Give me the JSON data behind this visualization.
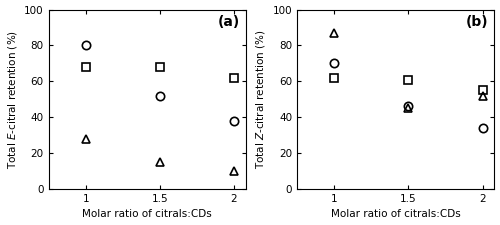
{
  "x": [
    1,
    1.5,
    2
  ],
  "panel_a": {
    "label": "(a)",
    "ylabel": "Total $\\it{E}$-citral retention (%)",
    "alpha_cd": [
      28,
      15,
      10
    ],
    "beta_cd": [
      80,
      52,
      38
    ],
    "gamma_cd": [
      68,
      68,
      62
    ]
  },
  "panel_b": {
    "label": "(b)",
    "ylabel": "Total $\\it{Z}$-citral retention (%)",
    "alpha_cd": [
      87,
      45,
      52
    ],
    "beta_cd": [
      70,
      46,
      34
    ],
    "gamma_cd": [
      62,
      61,
      55
    ]
  },
  "xlabel": "Molar ratio of citrals:CDs",
  "xlim": [
    0.75,
    2.08
  ],
  "ylim": [
    0,
    100
  ],
  "yticks": [
    0,
    20,
    40,
    60,
    80,
    100
  ],
  "xticks": [
    1,
    1.5,
    2
  ],
  "xtick_labels": [
    "1",
    "1.5",
    "2"
  ],
  "marker_alpha": "^",
  "marker_beta": "o",
  "marker_gamma": "s",
  "markersize": 6,
  "linewidth": 0,
  "color": "black",
  "label_fontsize": 7.5,
  "tick_fontsize": 7.5,
  "panel_label_fontsize": 10
}
